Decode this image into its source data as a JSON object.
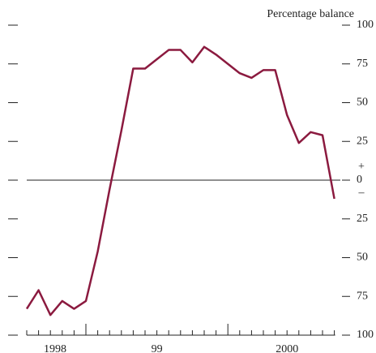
{
  "chart_data": {
    "type": "line",
    "axis_title": "Percentage balance",
    "sign_labels": [
      "+",
      "–"
    ],
    "x_labels": [
      "1998",
      "99",
      "2000"
    ],
    "categories": [
      null,
      null,
      null,
      null,
      null,
      null,
      null,
      null,
      null,
      null,
      null,
      null,
      null,
      null,
      null,
      null,
      null,
      null,
      null,
      null,
      null,
      null,
      null,
      null,
      null,
      null,
      null
    ],
    "series": [
      {
        "color": "#8b1a3f",
        "values": [
          -83,
          -71,
          -87,
          -78,
          -83,
          -78,
          -46,
          -6,
          32,
          72,
          72,
          78,
          84,
          84,
          76,
          86,
          81,
          75,
          69,
          66,
          71,
          71,
          42,
          24,
          31,
          29,
          -12
        ]
      }
    ],
    "ylim": [
      -100,
      100
    ],
    "yticks": [
      {
        "value": -100,
        "label": "100"
      },
      {
        "value": -75,
        "label": "75"
      },
      {
        "value": -50,
        "label": "50"
      },
      {
        "value": -25,
        "label": "25"
      },
      0,
      25,
      50,
      75,
      100
    ]
  }
}
